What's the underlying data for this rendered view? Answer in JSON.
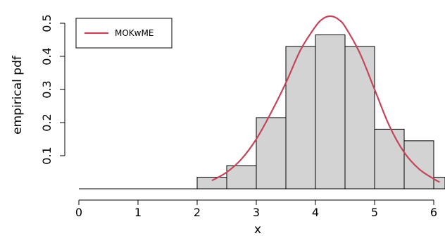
{
  "chart_data": {
    "type": "histogram-with-density",
    "xlabel": "x",
    "ylabel": "empirical pdf",
    "xlim": [
      -0.05,
      6.2
    ],
    "ylim": [
      0,
      0.53
    ],
    "x_ticks": [
      0,
      1,
      2,
      3,
      4,
      5,
      6
    ],
    "x_tick_labels": [
      "0",
      "1",
      "2",
      "3",
      "4",
      "5",
      "6"
    ],
    "y_ticks": [
      0.1,
      0.2,
      0.3,
      0.4,
      0.5
    ],
    "y_tick_labels": [
      "0.1",
      "0.2",
      "0.3",
      "0.4",
      "0.5"
    ],
    "bins": [
      {
        "x0": 2.0,
        "x1": 2.5,
        "density": 0.035
      },
      {
        "x0": 2.5,
        "x1": 3.0,
        "density": 0.07
      },
      {
        "x0": 3.0,
        "x1": 3.5,
        "density": 0.215
      },
      {
        "x0": 3.5,
        "x1": 4.0,
        "density": 0.43
      },
      {
        "x0": 4.0,
        "x1": 4.5,
        "density": 0.465
      },
      {
        "x0": 4.5,
        "x1": 5.0,
        "density": 0.43
      },
      {
        "x0": 5.0,
        "x1": 5.5,
        "density": 0.18
      },
      {
        "x0": 5.5,
        "x1": 6.0,
        "density": 0.145
      },
      {
        "x0": 6.0,
        "x1": 6.5,
        "density": 0.035
      }
    ],
    "zero_line": [
      0.0,
      2.0
    ],
    "series": [
      {
        "name": "MOKwME",
        "color": "#c4455a",
        "x": [
          2.25,
          2.5,
          2.75,
          3.0,
          3.25,
          3.5,
          3.75,
          4.0,
          4.1,
          4.2,
          4.3,
          4.4,
          4.5,
          4.75,
          5.0,
          5.25,
          5.5,
          5.75,
          6.0,
          6.1
        ],
        "y": [
          0.025,
          0.05,
          0.09,
          0.15,
          0.23,
          0.32,
          0.42,
          0.49,
          0.51,
          0.52,
          0.52,
          0.51,
          0.49,
          0.41,
          0.3,
          0.19,
          0.11,
          0.06,
          0.03,
          0.02
        ]
      }
    ],
    "legend": {
      "position": "top-left"
    },
    "bar_fill": "#d3d3d3",
    "bar_stroke": "#000000"
  }
}
